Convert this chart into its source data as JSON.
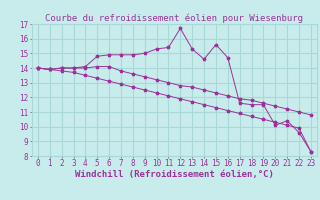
{
  "title": "Courbe du refroidissement éolien pour Wiesenburg",
  "xlabel": "Windchill (Refroidissement éolien,°C)",
  "background_color": "#c8ecec",
  "grid_color": "#a8d8d8",
  "line_color": "#993399",
  "hours": [
    0,
    1,
    2,
    3,
    4,
    5,
    6,
    7,
    8,
    9,
    10,
    11,
    12,
    13,
    14,
    15,
    16,
    17,
    18,
    19,
    20,
    21,
    22,
    23
  ],
  "series1": [
    14.0,
    13.9,
    14.0,
    14.0,
    14.1,
    14.8,
    14.9,
    14.9,
    14.9,
    15.0,
    15.3,
    15.4,
    16.7,
    15.3,
    14.6,
    15.6,
    14.7,
    11.6,
    11.5,
    11.5,
    10.1,
    10.4,
    9.6,
    8.3
  ],
  "series2": [
    14.0,
    13.9,
    14.0,
    14.0,
    14.0,
    14.1,
    14.1,
    13.8,
    13.6,
    13.4,
    13.2,
    13.0,
    12.8,
    12.7,
    12.5,
    12.3,
    12.1,
    11.9,
    11.8,
    11.6,
    11.4,
    11.2,
    11.0,
    10.8
  ],
  "series3": [
    14.0,
    13.9,
    13.8,
    13.7,
    13.5,
    13.3,
    13.1,
    12.9,
    12.7,
    12.5,
    12.3,
    12.1,
    11.9,
    11.7,
    11.5,
    11.3,
    11.1,
    10.9,
    10.7,
    10.5,
    10.3,
    10.1,
    9.9,
    8.3
  ],
  "ylim": [
    8,
    17
  ],
  "xlim": [
    -0.5,
    23.5
  ],
  "yticks": [
    8,
    9,
    10,
    11,
    12,
    13,
    14,
    15,
    16,
    17
  ],
  "xticks": [
    0,
    1,
    2,
    3,
    4,
    5,
    6,
    7,
    8,
    9,
    10,
    11,
    12,
    13,
    14,
    15,
    16,
    17,
    18,
    19,
    20,
    21,
    22,
    23
  ],
  "title_fontsize": 6.5,
  "tick_fontsize": 5.5,
  "xlabel_fontsize": 6.5
}
